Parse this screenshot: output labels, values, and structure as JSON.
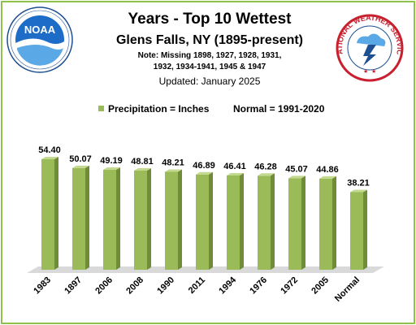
{
  "header": {
    "title": "Years - Top 10 Wettest",
    "subtitle": "Glens Falls, NY (1895-present)",
    "note_line1": "Note:  Missing 1898, 1927, 1928, 1931,",
    "note_line2": "1932, 1934-1941, 1945 & 1947",
    "updated": "Updated: January 2025"
  },
  "logos": {
    "noaa": {
      "text": "NOAA",
      "ring_top": "NATIONAL OCEANIC AND ATMOSPHERIC ADMINISTRATION",
      "ring_bottom": "U.S. DEPARTMENT OF COMMERCE"
    },
    "nws": {
      "ring": "NATIONAL WEATHER SERVICE"
    }
  },
  "legend": {
    "series_label": "Precipitation = Inches",
    "normal_label": "Normal = 1991-2020"
  },
  "colors": {
    "bar_front": "#9bbb59",
    "bar_side": "#6f8c38",
    "bar_top": "#c3d98f",
    "border": "#8fc24a",
    "floor": "#d9d9d9"
  },
  "chart_data": {
    "type": "bar",
    "categories": [
      "1983",
      "1897",
      "2006",
      "2008",
      "1990",
      "2011",
      "1994",
      "1976",
      "1972",
      "2005",
      "Normal"
    ],
    "series": [
      {
        "name": "Precipitation = Inches",
        "values": [
          54.4,
          50.07,
          49.19,
          48.81,
          48.21,
          46.89,
          46.41,
          46.28,
          45.07,
          44.86,
          38.21
        ],
        "labels": [
          "54.40",
          "50.07",
          "49.19",
          "48.81",
          "48.21",
          "46.89",
          "46.41",
          "46.28",
          "45.07",
          "44.86",
          "38.21"
        ]
      }
    ],
    "title": "Years - Top 10 Wettest",
    "xlabel": "",
    "ylabel": "",
    "ylim": [
      0,
      60
    ],
    "grid": false,
    "legend_position": "top"
  }
}
